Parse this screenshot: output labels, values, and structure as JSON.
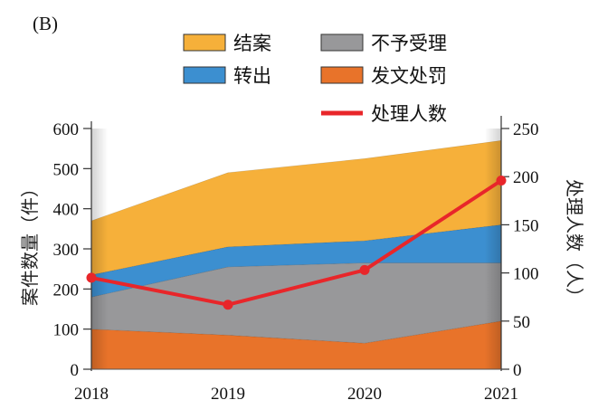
{
  "panel_label": "(B)",
  "chart_data": {
    "type": "area",
    "x": [
      2018,
      2019,
      2020,
      2021
    ],
    "xlabel": "",
    "ylabel": "案件数量（件）",
    "ylim": [
      0,
      600
    ],
    "y_ticks": [
      0,
      100,
      200,
      300,
      400,
      500,
      600
    ],
    "y2label": "处理人数（人）",
    "y2lim": [
      0,
      250
    ],
    "y2_ticks": [
      0,
      50,
      100,
      150,
      200,
      250
    ],
    "stacked": true,
    "series": [
      {
        "name": "发文处罚",
        "values": [
          100,
          85,
          65,
          120
        ],
        "color": "#e8732a"
      },
      {
        "name": "不予受理",
        "values": [
          80,
          170,
          200,
          145
        ],
        "color": "#98989a"
      },
      {
        "name": "转出",
        "values": [
          55,
          50,
          55,
          95
        ],
        "color": "#3c8fd0"
      },
      {
        "name": "结案",
        "values": [
          135,
          185,
          205,
          210
        ],
        "color": "#f6b03a"
      }
    ],
    "line_series": [
      {
        "name": "处理人数",
        "axis": "right",
        "values": [
          95,
          67,
          103,
          196
        ],
        "color": "#e8262a"
      }
    ],
    "legend": {
      "placement": "top",
      "items": [
        "结案",
        "不予受理",
        "转出",
        "发文处罚",
        "处理人数"
      ]
    }
  }
}
